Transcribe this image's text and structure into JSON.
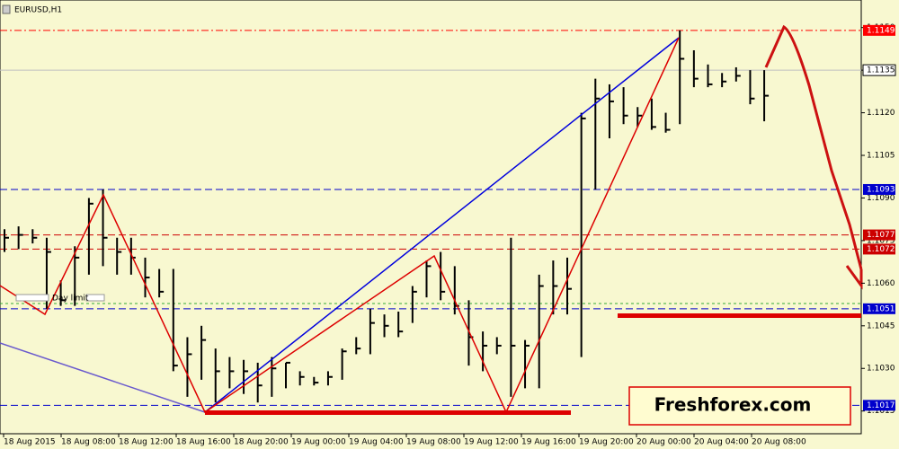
{
  "header": {
    "title": "EURUSD,H1"
  },
  "watermark": "Freshforex.com",
  "day_limit_label": "Day limit",
  "chart_data": {
    "type": "hlc",
    "color": "#000000",
    "high": [
      1.1079,
      1.108,
      1.1079,
      1.1076,
      1.1061,
      1.1073,
      1.109,
      1.1093,
      1.1076,
      1.1076,
      1.1069,
      1.1065,
      1.1065,
      1.1041,
      1.1045,
      1.1037,
      1.1034,
      1.1033,
      1.1032,
      1.1034,
      1.1032,
      1.1029,
      1.1027,
      1.1029,
      1.1037,
      1.1041,
      1.1051,
      1.1049,
      1.105,
      1.1059,
      1.1068,
      1.1071,
      1.1066,
      1.1054,
      1.1043,
      1.1041,
      1.1076,
      1.104,
      1.1063,
      1.1068,
      1.1069,
      1.112,
      1.1132,
      1.113,
      1.1129,
      1.1122,
      1.1125,
      1.112,
      1.1149,
      1.1142,
      1.1137,
      1.1134,
      1.1136,
      1.1135,
      1.1135
    ],
    "low": [
      1.1071,
      1.1072,
      1.1074,
      1.1051,
      1.1052,
      1.1052,
      1.1063,
      1.1066,
      1.1063,
      1.1063,
      1.1055,
      1.1055,
      1.1029,
      1.102,
      1.1026,
      1.1018,
      1.1023,
      1.1021,
      1.1018,
      1.102,
      1.1023,
      1.1024,
      1.1024,
      1.1024,
      1.1026,
      1.1035,
      1.1035,
      1.1041,
      1.1041,
      1.1046,
      1.1055,
      1.1054,
      1.1049,
      1.1031,
      1.1029,
      1.1035,
      1.102,
      1.1023,
      1.1023,
      1.1049,
      1.1049,
      1.1034,
      1.1093,
      1.1111,
      1.1116,
      1.1115,
      1.1114,
      1.1113,
      1.1116,
      1.1129,
      1.1129,
      1.1129,
      1.1131,
      1.1123,
      1.1117
    ],
    "close": [
      1.1076,
      1.1077,
      1.1076,
      1.1071,
      1.1054,
      1.1069,
      1.1088,
      1.1076,
      1.1071,
      1.1069,
      1.1062,
      1.1057,
      1.1031,
      1.1035,
      1.104,
      1.1029,
      1.1029,
      1.1029,
      1.1024,
      1.103,
      1.1032,
      1.1027,
      1.1025,
      1.1027,
      1.1036,
      1.1037,
      1.1046,
      1.1045,
      1.1043,
      1.1057,
      1.1066,
      1.1057,
      1.1052,
      1.1041,
      1.1038,
      1.1038,
      1.1038,
      1.1038,
      1.1059,
      1.1059,
      1.1058,
      1.1118,
      1.1125,
      1.1124,
      1.1119,
      1.1119,
      1.1115,
      1.1114,
      1.1139,
      1.1132,
      1.113,
      1.1131,
      1.1133,
      1.1125,
      1.1126
    ],
    "ylim": [
      1.1007,
      1.11597
    ],
    "yticks": [
      {
        "value": 1.115,
        "label": "1.1150"
      },
      {
        "value": 1.1135,
        "label": "1.1135"
      },
      {
        "value": 1.112,
        "label": "1.1120"
      },
      {
        "value": 1.1105,
        "label": "1.1105"
      },
      {
        "value": 1.109,
        "label": "1.1090"
      },
      {
        "value": 1.1075,
        "label": "1.1075"
      },
      {
        "value": 1.106,
        "label": "1.1060"
      },
      {
        "value": 1.1045,
        "label": "1.1045"
      },
      {
        "value": 1.103,
        "label": "1.1030"
      },
      {
        "value": 1.1015,
        "label": "1.1015"
      }
    ],
    "xtick_labels": [
      "18 Aug 2015",
      "18 Aug 08:00",
      "18 Aug 12:00",
      "18 Aug 16:00",
      "18 Aug 20:00",
      "19 Aug 00:00",
      "19 Aug 04:00",
      "19 Aug 08:00",
      "19 Aug 12:00",
      "19 Aug 16:00",
      "19 Aug 20:00",
      "20 Aug 00:00",
      "20 Aug 04:00",
      "20 Aug 08:00"
    ],
    "levels": [
      {
        "value": 1.1149,
        "label": "1.1149",
        "color": "#ff0000",
        "style": "dashdot"
      },
      {
        "value": 1.1135,
        "label": "1.1135",
        "color": "#c0c0c0",
        "style": "solid"
      },
      {
        "value": 1.1093,
        "label": "1.1093",
        "color": "#0000cc",
        "style": "dash"
      },
      {
        "value": 1.1077,
        "label": "1.1077",
        "color": "#cc0000",
        "style": "dash"
      },
      {
        "value": 1.1072,
        "label": "1.1072",
        "color": "#cc0000",
        "style": "dash"
      },
      {
        "value": 1.1051,
        "label": "1.1051",
        "color": "#0000cc",
        "style": "dash"
      },
      {
        "value": 1.1017,
        "label": "1.1017",
        "color": "#0000cc",
        "style": "dash"
      }
    ]
  }
}
